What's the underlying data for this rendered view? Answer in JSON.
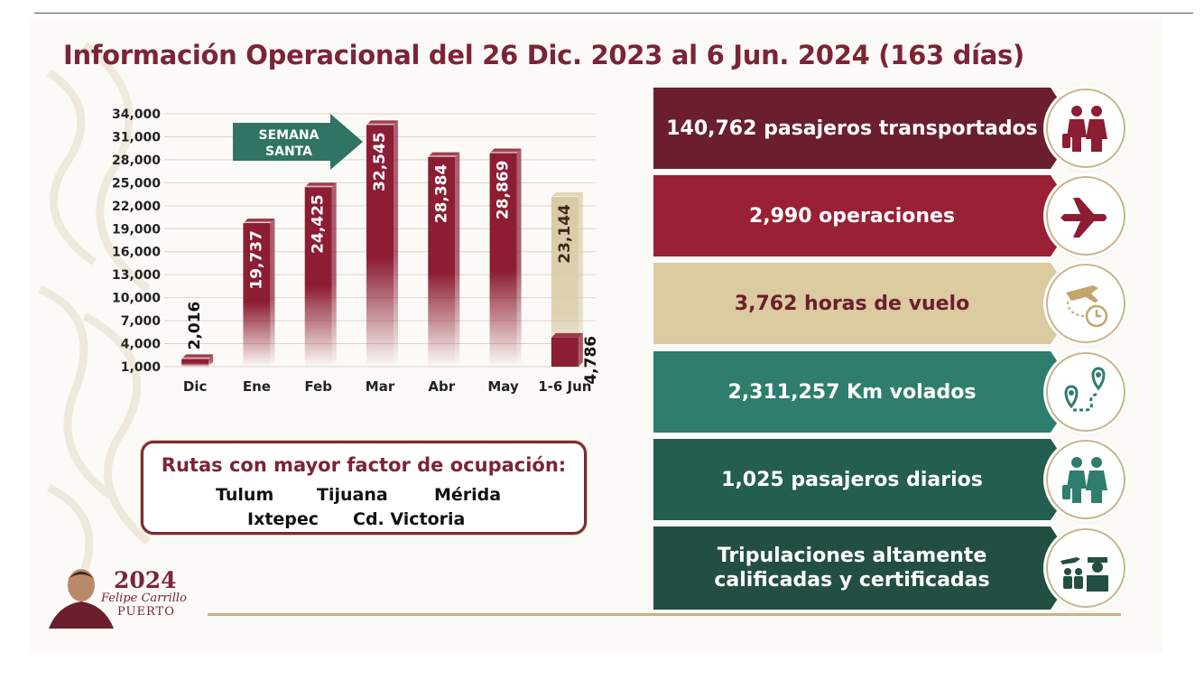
{
  "title": "Información Operacional del 26 Dic. 2023 al 6 Jun. 2024 (163 días)",
  "chart_data": {
    "type": "bar",
    "categories": [
      "Dic",
      "Ene",
      "Feb",
      "Mar",
      "Abr",
      "May",
      "1-6 Jun"
    ],
    "values": [
      2016,
      19737,
      24425,
      32545,
      28384,
      28869,
      4786
    ],
    "value_labels": [
      "2,016",
      "19,737",
      "24,425",
      "32,545",
      "28,384",
      "28,869",
      "4,786"
    ],
    "projected": {
      "category": "1-6 Jun",
      "value": 23144,
      "label": "23,144"
    },
    "yticks": [
      "34,000",
      "31,000",
      "28,000",
      "25,000",
      "22,000",
      "19,000",
      "16,000",
      "13,000",
      "10,000",
      "7,000",
      "4,000",
      "1,000"
    ],
    "ylim": [
      1000,
      34000
    ],
    "annotation": {
      "line1": "SEMANA",
      "line2": "SANTA"
    },
    "colors": {
      "bar": "#8c1d33",
      "projected": "#d8c9a3",
      "arrow": "#2f7464"
    }
  },
  "routes": {
    "title": "Rutas con mayor factor de ocupación:",
    "items": [
      "Tulum",
      "Tijuana",
      "Mérida",
      "Ixtepec",
      "Cd. Victoria"
    ]
  },
  "stats": [
    {
      "text": "140,762 pasajeros transportados",
      "color": "#6b1f2e",
      "text_color": "#ffffff",
      "icon": "passengers-icon"
    },
    {
      "text": "2,990 operaciones",
      "color": "#9a2035",
      "text_color": "#ffffff",
      "icon": "airplane-icon"
    },
    {
      "text": "3,762 horas de vuelo",
      "color": "#dccaa0",
      "text_color": "#6b1f2e",
      "icon": "flight-hours-icon"
    },
    {
      "text": "2,311,257 Km volados",
      "color": "#2f7d6c",
      "text_color": "#ffffff",
      "icon": "route-pins-icon"
    },
    {
      "text": "1,025 pasajeros diarios",
      "color": "#245e4f",
      "text_color": "#ffffff",
      "icon": "daily-passengers-icon"
    },
    {
      "text": "Tripulaciones altamente",
      "text2": "calificadas y certificadas",
      "color": "#234f43",
      "text_color": "#ffffff",
      "icon": "crew-icon"
    }
  ],
  "logo": {
    "year": "2024",
    "name": "Felipe Carrillo",
    "place": "PUERTO"
  }
}
